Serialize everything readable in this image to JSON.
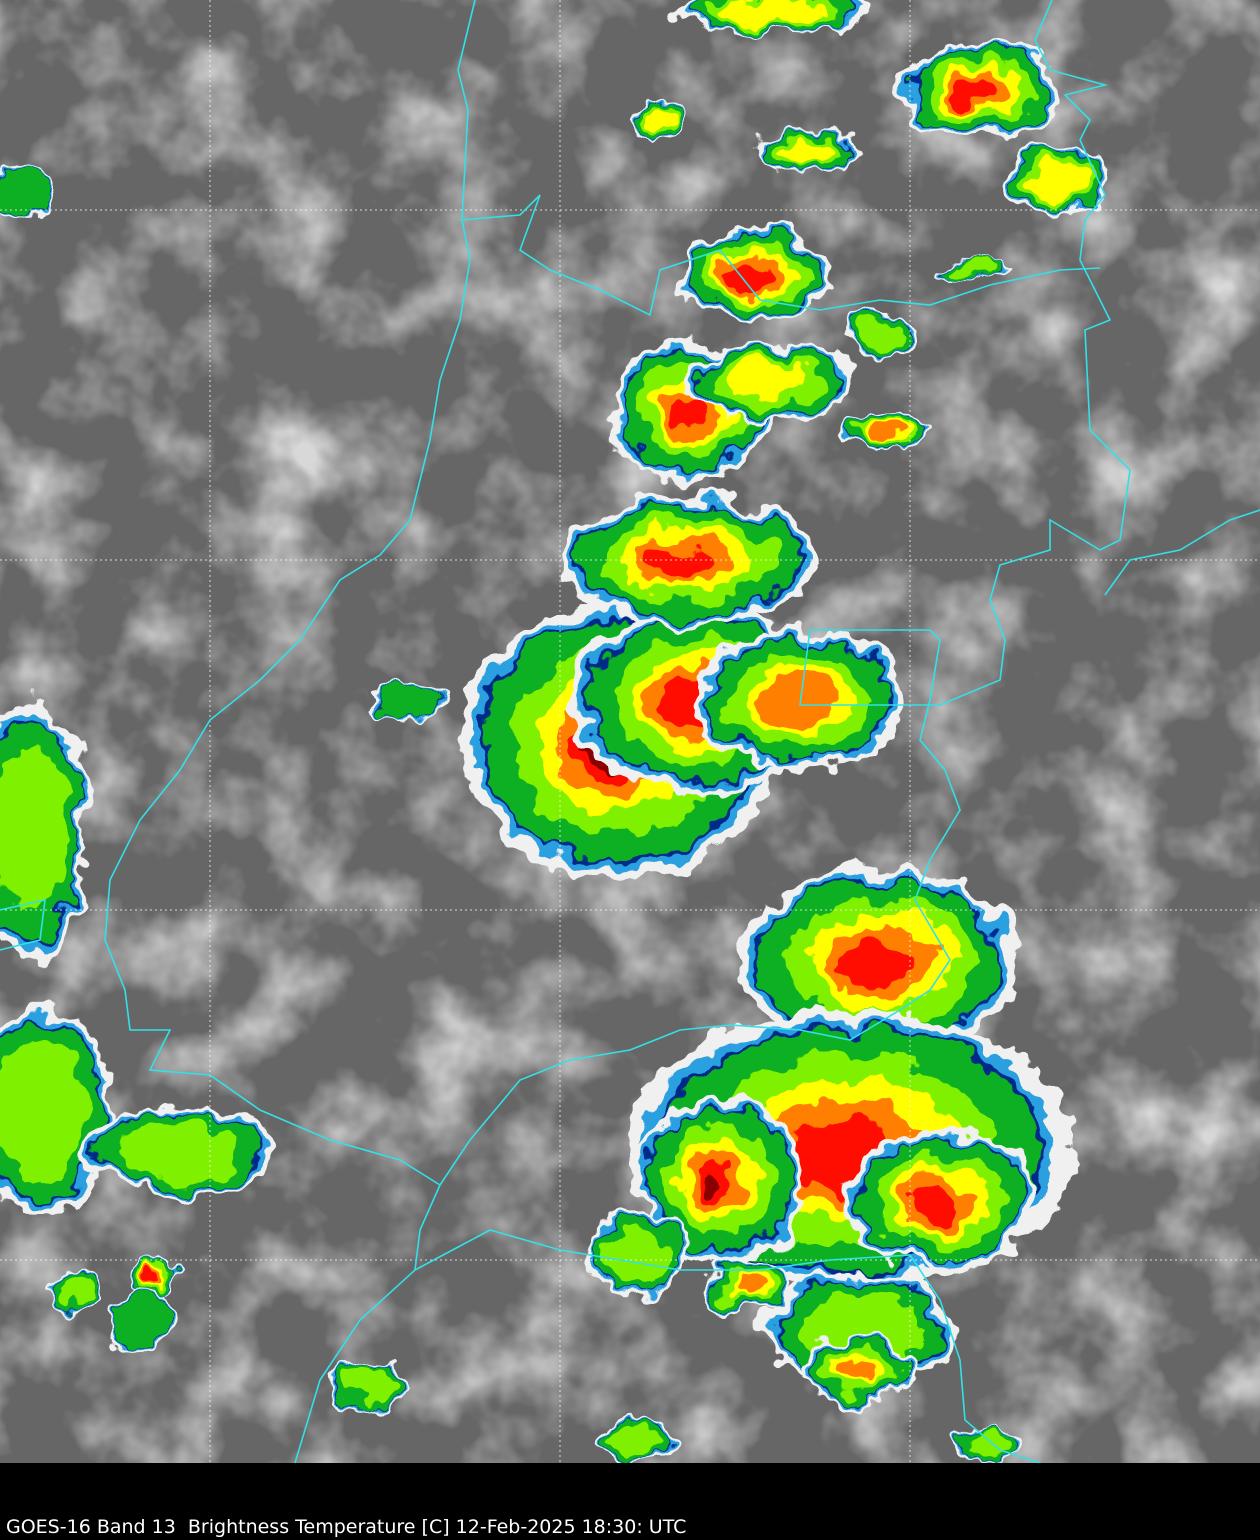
{
  "caption": "GOES-16 Band 13  Brightness Temperature [C] 12-Feb-2025 18:30: UTC",
  "map": {
    "product": "infrared brightness temperature satellite imagery",
    "gridlines": true,
    "colors": {
      "background_gray": "#6a6a6a",
      "warm_cloud_white": "#e8e8e8",
      "border": "#33e0e8",
      "grid": "#ffffff",
      "enhancement": [
        "#f0f0f0",
        "#2aa0e0",
        "#002a8a",
        "#10b020",
        "#7ef000",
        "#ffff00",
        "#ff8000",
        "#ff1000",
        "#8a0000",
        "#2a0000"
      ]
    }
  }
}
